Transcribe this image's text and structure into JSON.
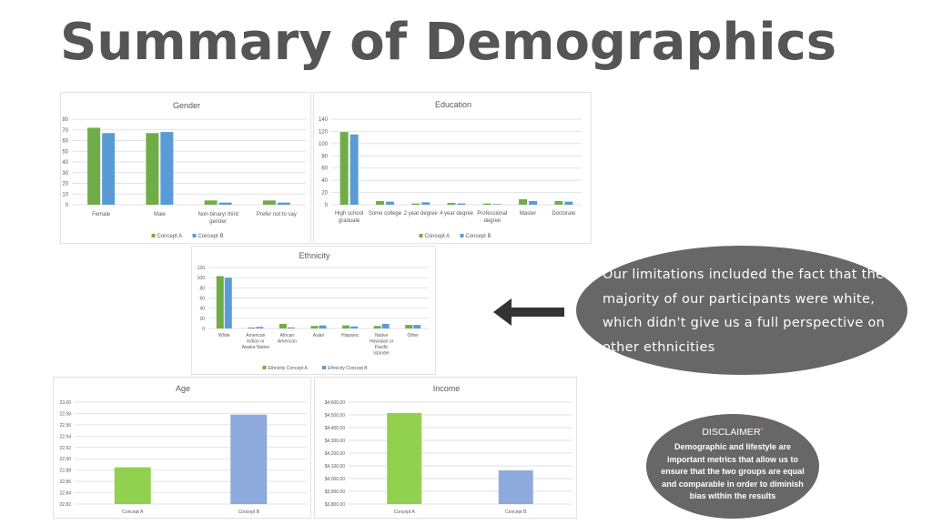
{
  "page": {
    "title": "Summary of Demographics",
    "callout": "Our limitations included the fact that the majority of our participants were white, which didn't give us a full perspective on other ethnicities",
    "disclaimer_heading": "DISCLAIMER",
    "disclaimer_mark": "*",
    "disclaimer_body": "Demographic and lifestyle are important metrics that allow us to ensure that the two groups are equal and comparable in order to diminish bias within the results"
  },
  "colors": {
    "green": "#70ad47",
    "blue": "#5b9bd5",
    "age_green": "#92d050",
    "age_blue": "#8faadc",
    "grid": "#d9d9d9",
    "text": "#595959"
  },
  "chart_data": [
    {
      "type": "bar",
      "title": "Gender",
      "categories": [
        [
          "Female"
        ],
        [
          "Male"
        ],
        [
          "Non-binary/ third",
          "gender"
        ],
        [
          "Prefer not to say"
        ]
      ],
      "series": [
        {
          "name": "Concept A",
          "values": [
            72,
            67,
            4,
            4
          ]
        },
        {
          "name": "Concept B",
          "values": [
            67,
            68,
            2,
            2
          ]
        }
      ],
      "ylim": [
        0,
        80
      ],
      "yticks": [
        0,
        10,
        20,
        30,
        40,
        50,
        60,
        70,
        80
      ],
      "ytick_labels": [
        "0",
        "10",
        "20",
        "30",
        "40",
        "50",
        "60",
        "70",
        "80"
      ],
      "grid": true,
      "legend": "bottom"
    },
    {
      "type": "bar",
      "title": "Education",
      "categories": [
        [
          "High school",
          "graduate"
        ],
        [
          "Some college"
        ],
        [
          "2 year degree"
        ],
        [
          "4 year degree"
        ],
        [
          "Professional",
          "degree"
        ],
        [
          "Master"
        ],
        [
          "Doctorate"
        ]
      ],
      "series": [
        {
          "name": "Concept A",
          "values": [
            119,
            6,
            2,
            3,
            2,
            9,
            6
          ]
        },
        {
          "name": "Concept B",
          "values": [
            115,
            5,
            4,
            2,
            1,
            6,
            5
          ]
        }
      ],
      "ylim": [
        0,
        140
      ],
      "yticks": [
        0,
        20,
        40,
        60,
        80,
        100,
        120,
        140
      ],
      "ytick_labels": [
        "0",
        "20",
        "40",
        "60",
        "80",
        "100",
        "120",
        "140"
      ],
      "grid": true,
      "legend": "bottom"
    },
    {
      "type": "bar",
      "title": "Ethnicity",
      "categories": [
        [
          "White"
        ],
        [
          "American",
          "Indian or",
          "Alaska Native"
        ],
        [
          "African",
          "American"
        ],
        [
          "Asian"
        ],
        [
          "Hispanic"
        ],
        [
          "Native",
          "Hawaiian or",
          "Pacific",
          "Islander"
        ],
        [
          "Other"
        ]
      ],
      "series": [
        {
          "name": "Ethnicity Concept A",
          "values": [
            103,
            2,
            9,
            5,
            6,
            5,
            7
          ]
        },
        {
          "name": "Ethnicity Concept B",
          "values": [
            100,
            3,
            2,
            6,
            4,
            9,
            7
          ]
        }
      ],
      "ylim": [
        0,
        120
      ],
      "yticks": [
        0,
        20,
        40,
        60,
        80,
        100,
        120
      ],
      "ytick_labels": [
        "0",
        "20",
        "40",
        "60",
        "80",
        "100",
        "120"
      ],
      "grid": true,
      "legend": "bottom"
    },
    {
      "type": "bar",
      "title": "Age",
      "categories": [
        [
          "Concept A"
        ],
        [
          "Concept B"
        ]
      ],
      "series": [
        {
          "values": [
            22.885,
            22.978
          ]
        }
      ],
      "ylim": [
        22.82,
        23.0
      ],
      "yticks": [
        22.82,
        22.84,
        22.86,
        22.88,
        22.9,
        22.92,
        22.94,
        22.96,
        22.98,
        23.0
      ],
      "ytick_labels": [
        "22.82",
        "22.84",
        "22.86",
        "22.88",
        "22.90",
        "22.92",
        "22.94",
        "22.96",
        "22.98",
        "23.00"
      ],
      "grid": true,
      "legend": "none"
    },
    {
      "type": "bar",
      "title": "Income",
      "categories": [
        [
          "Concept A"
        ],
        [
          "Concept B"
        ]
      ],
      "series": [
        {
          "values": [
            4515,
            4065
          ]
        }
      ],
      "ylim": [
        3800,
        4600
      ],
      "yticks": [
        3800,
        3900,
        4000,
        4100,
        4200,
        4300,
        4400,
        4500,
        4600
      ],
      "ytick_labels": [
        "$3,800.00",
        "$3,900.00",
        "$4,000.00",
        "$4,100.00",
        "$4,200.00",
        "$4,300.00",
        "$4,400.00",
        "$4,500.00",
        "$4,600.00"
      ],
      "grid": true,
      "legend": "none"
    }
  ]
}
